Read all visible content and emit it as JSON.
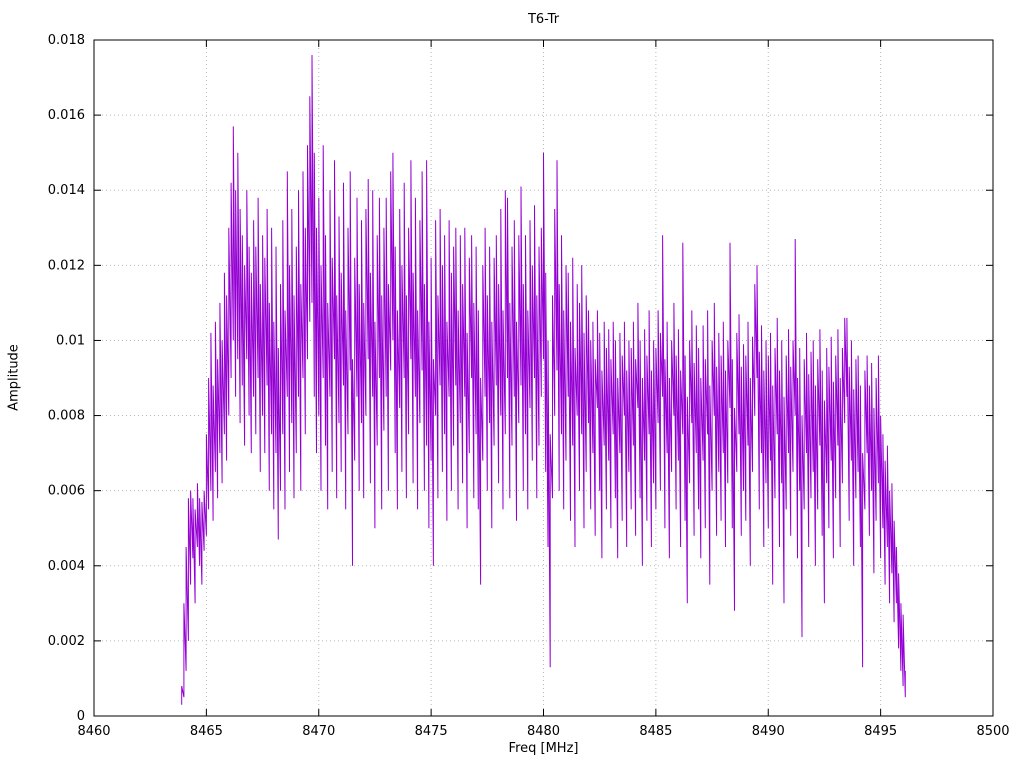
{
  "page": {
    "title": "T6-Tr"
  },
  "chart_data": {
    "type": "line",
    "title": "T6-Tr",
    "xlabel": "Freq [MHz]",
    "ylabel": "Amplitude",
    "xlim": [
      8460,
      8500
    ],
    "ylim": [
      0,
      0.018
    ],
    "x_ticks": [
      8460,
      8465,
      8470,
      8475,
      8480,
      8485,
      8490,
      8495,
      8500
    ],
    "y_tick_labels": [
      "0",
      "0.002",
      "0.004",
      "0.006",
      "0.008",
      "0.01",
      "0.012",
      "0.014",
      "0.016",
      "0.018"
    ],
    "y_tick_values": [
      0,
      0.002,
      0.004,
      0.006,
      0.008,
      0.01,
      0.012,
      0.014,
      0.016,
      0.018
    ],
    "grid": true,
    "legend": "none",
    "line_color": "#9400d3",
    "grid_color": "#b8b8b8",
    "border_color": "#000000",
    "bins_format": "noisy amplitude spectrum; each bin = [amp_min, amp_max] over dx MHz starting at x0; amplitudes are value * y_scale",
    "x0": 8463.9,
    "dx": 0.1,
    "y_scale": 0.0001,
    "bins": [
      [
        3,
        8
      ],
      [
        5,
        30
      ],
      [
        12,
        45
      ],
      [
        20,
        58
      ],
      [
        35,
        60
      ],
      [
        42,
        58
      ],
      [
        30,
        55
      ],
      [
        45,
        62
      ],
      [
        40,
        58
      ],
      [
        35,
        57
      ],
      [
        44,
        60
      ],
      [
        48,
        75
      ],
      [
        55,
        90
      ],
      [
        60,
        102
      ],
      [
        52,
        88
      ],
      [
        65,
        105
      ],
      [
        58,
        95
      ],
      [
        70,
        110
      ],
      [
        62,
        100
      ],
      [
        75,
        118
      ],
      [
        68,
        112
      ],
      [
        80,
        130
      ],
      [
        90,
        142
      ],
      [
        100,
        157
      ],
      [
        85,
        140
      ],
      [
        95,
        150
      ],
      [
        78,
        135
      ],
      [
        88,
        128
      ],
      [
        72,
        120
      ],
      [
        95,
        140
      ],
      [
        80,
        125
      ],
      [
        70,
        118
      ],
      [
        85,
        132
      ],
      [
        75,
        125
      ],
      [
        90,
        138
      ],
      [
        65,
        115
      ],
      [
        80,
        128
      ],
      [
        70,
        122
      ],
      [
        88,
        135
      ],
      [
        60,
        110
      ],
      [
        75,
        130
      ],
      [
        55,
        105
      ],
      [
        70,
        125
      ],
      [
        47,
        98
      ],
      [
        60,
        115
      ],
      [
        75,
        132
      ],
      [
        55,
        108
      ],
      [
        85,
        145
      ],
      [
        65,
        120
      ],
      [
        78,
        135
      ],
      [
        58,
        112
      ],
      [
        70,
        125
      ],
      [
        85,
        140
      ],
      [
        60,
        115
      ],
      [
        90,
        145
      ],
      [
        75,
        130
      ],
      [
        95,
        152
      ],
      [
        105,
        165
      ],
      [
        110,
        176
      ],
      [
        85,
        150
      ],
      [
        70,
        130
      ],
      [
        80,
        138
      ],
      [
        60,
        120
      ],
      [
        90,
        152
      ],
      [
        72,
        128
      ],
      [
        55,
        110
      ],
      [
        85,
        140
      ],
      [
        65,
        122
      ],
      [
        95,
        148
      ],
      [
        58,
        112
      ],
      [
        78,
        133
      ],
      [
        65,
        118
      ],
      [
        88,
        142
      ],
      [
        55,
        108
      ],
      [
        75,
        130
      ],
      [
        92,
        145
      ],
      [
        40,
        95
      ],
      [
        68,
        122
      ],
      [
        85,
        138
      ],
      [
        60,
        115
      ],
      [
        78,
        132
      ],
      [
        58,
        110
      ],
      [
        80,
        135
      ],
      [
        95,
        143
      ],
      [
        62,
        118
      ],
      [
        85,
        140
      ],
      [
        50,
        105
      ],
      [
        72,
        128
      ],
      [
        90,
        138
      ],
      [
        55,
        112
      ],
      [
        76,
        130
      ],
      [
        85,
        138
      ],
      [
        60,
        115
      ],
      [
        92,
        145
      ],
      [
        100,
        150
      ],
      [
        70,
        125
      ],
      [
        55,
        108
      ],
      [
        82,
        135
      ],
      [
        65,
        120
      ],
      [
        90,
        142
      ],
      [
        58,
        112
      ],
      [
        75,
        130
      ],
      [
        95,
        148
      ],
      [
        62,
        118
      ],
      [
        85,
        138
      ],
      [
        55,
        108
      ],
      [
        78,
        132
      ],
      [
        92,
        145
      ],
      [
        60,
        115
      ],
      [
        72,
        148
      ],
      [
        50,
        105
      ],
      [
        68,
        122
      ],
      [
        40,
        95
      ],
      [
        80,
        132
      ],
      [
        58,
        112
      ],
      [
        88,
        135
      ],
      [
        65,
        120
      ],
      [
        75,
        128
      ],
      [
        52,
        105
      ],
      [
        85,
        132
      ],
      [
        60,
        118
      ],
      [
        72,
        125
      ],
      [
        88,
        130
      ],
      [
        55,
        108
      ],
      [
        78,
        128
      ],
      [
        62,
        115
      ],
      [
        85,
        130
      ],
      [
        50,
        102
      ],
      [
        70,
        122
      ],
      [
        90,
        128
      ],
      [
        58,
        110
      ],
      [
        75,
        125
      ],
      [
        55,
        108
      ],
      [
        35,
        90
      ],
      [
        68,
        120
      ],
      [
        85,
        130
      ],
      [
        60,
        112
      ],
      [
        78,
        125
      ],
      [
        50,
        105
      ],
      [
        72,
        122
      ],
      [
        88,
        128
      ],
      [
        62,
        115
      ],
      [
        80,
        135
      ],
      [
        55,
        108
      ],
      [
        75,
        140
      ],
      [
        90,
        138
      ],
      [
        58,
        110
      ],
      [
        72,
        125
      ],
      [
        85,
        132
      ],
      [
        52,
        105
      ],
      [
        78,
        128
      ],
      [
        88,
        141
      ],
      [
        60,
        115
      ],
      [
        75,
        128
      ],
      [
        55,
        108
      ],
      [
        82,
        132
      ],
      [
        68,
        120
      ],
      [
        90,
        136
      ],
      [
        58,
        112
      ],
      [
        72,
        125
      ],
      [
        85,
        130
      ],
      [
        95,
        150
      ],
      [
        65,
        118
      ],
      [
        45,
        100
      ],
      [
        13,
        75
      ],
      [
        58,
        112
      ],
      [
        80,
        135
      ],
      [
        92,
        148
      ],
      [
        60,
        115
      ],
      [
        75,
        128
      ],
      [
        55,
        108
      ],
      [
        68,
        120
      ],
      [
        85,
        118
      ],
      [
        52,
        105
      ],
      [
        72,
        122
      ],
      [
        45,
        98
      ],
      [
        80,
        115
      ],
      [
        60,
        110
      ],
      [
        75,
        120
      ],
      [
        50,
        102
      ],
      [
        65,
        112
      ],
      [
        78,
        108
      ],
      [
        55,
        100
      ],
      [
        70,
        105
      ],
      [
        48,
        95
      ],
      [
        82,
        108
      ],
      [
        60,
        102
      ],
      [
        42,
        92
      ],
      [
        72,
        105
      ],
      [
        55,
        98
      ],
      [
        68,
        103
      ],
      [
        50,
        95
      ],
      [
        75,
        105
      ],
      [
        58,
        100
      ],
      [
        42,
        90
      ],
      [
        70,
        102
      ],
      [
        52,
        96
      ],
      [
        80,
        105
      ],
      [
        45,
        92
      ],
      [
        65,
        100
      ],
      [
        55,
        98
      ],
      [
        72,
        105
      ],
      [
        48,
        95
      ],
      [
        82,
        110
      ],
      [
        58,
        100
      ],
      [
        40,
        90
      ],
      [
        68,
        103
      ],
      [
        52,
        96
      ],
      [
        75,
        108
      ],
      [
        45,
        92
      ],
      [
        62,
        100
      ],
      [
        55,
        98
      ],
      [
        78,
        108
      ],
      [
        60,
        102
      ],
      [
        85,
        128
      ],
      [
        50,
        95
      ],
      [
        70,
        105
      ],
      [
        42,
        90
      ],
      [
        65,
        100
      ],
      [
        80,
        110
      ],
      [
        55,
        96
      ],
      [
        68,
        103
      ],
      [
        45,
        92
      ],
      [
        75,
        126
      ],
      [
        52,
        96
      ],
      [
        30,
        85
      ],
      [
        62,
        100
      ],
      [
        78,
        108
      ],
      [
        48,
        94
      ],
      [
        70,
        104
      ],
      [
        55,
        98
      ],
      [
        42,
        90
      ],
      [
        68,
        104
      ],
      [
        50,
        95
      ],
      [
        75,
        108
      ],
      [
        35,
        88
      ],
      [
        60,
        100
      ],
      [
        80,
        110
      ],
      [
        48,
        93
      ],
      [
        65,
        102
      ],
      [
        52,
        96
      ],
      [
        70,
        105
      ],
      [
        45,
        92
      ],
      [
        62,
        100
      ],
      [
        82,
        126
      ],
      [
        50,
        95
      ],
      [
        28,
        82
      ],
      [
        65,
        102
      ],
      [
        75,
        107
      ],
      [
        48,
        93
      ],
      [
        60,
        99
      ],
      [
        52,
        96
      ],
      [
        72,
        105
      ],
      [
        40,
        90
      ],
      [
        65,
        101
      ],
      [
        80,
        115
      ],
      [
        90,
        120
      ],
      [
        55,
        97
      ],
      [
        70,
        104
      ],
      [
        45,
        92
      ],
      [
        62,
        100
      ],
      [
        50,
        96
      ],
      [
        68,
        102
      ],
      [
        35,
        88
      ],
      [
        58,
        98
      ],
      [
        75,
        106
      ],
      [
        45,
        92
      ],
      [
        62,
        100
      ],
      [
        30,
        85
      ],
      [
        55,
        96
      ],
      [
        70,
        103
      ],
      [
        48,
        93
      ],
      [
        65,
        100
      ],
      [
        80,
        127
      ],
      [
        42,
        90
      ],
      [
        60,
        98
      ],
      [
        21,
        80
      ],
      [
        55,
        95
      ],
      [
        70,
        102
      ],
      [
        45,
        91
      ],
      [
        58,
        97
      ],
      [
        65,
        100
      ],
      [
        40,
        88
      ],
      [
        55,
        95
      ],
      [
        72,
        103
      ],
      [
        48,
        92
      ],
      [
        30,
        84
      ],
      [
        62,
        98
      ],
      [
        50,
        93
      ],
      [
        68,
        101
      ],
      [
        42,
        89
      ],
      [
        58,
        96
      ],
      [
        72,
        103
      ],
      [
        45,
        90
      ],
      [
        62,
        98
      ],
      [
        78,
        106
      ],
      [
        85,
        106
      ],
      [
        52,
        93
      ],
      [
        68,
        100
      ],
      [
        40,
        87
      ],
      [
        58,
        95
      ],
      [
        65,
        96
      ],
      [
        45,
        88
      ],
      [
        13,
        70
      ],
      [
        55,
        92
      ],
      [
        70,
        96
      ],
      [
        48,
        88
      ],
      [
        60,
        94
      ],
      [
        38,
        82
      ],
      [
        52,
        90
      ],
      [
        62,
        96
      ],
      [
        42,
        80
      ],
      [
        50,
        75
      ],
      [
        35,
        68
      ],
      [
        45,
        72
      ],
      [
        30,
        60
      ],
      [
        38,
        62
      ],
      [
        25,
        52
      ],
      [
        30,
        45
      ],
      [
        18,
        38
      ],
      [
        12,
        30
      ],
      [
        8,
        27
      ],
      [
        5,
        12
      ]
    ]
  }
}
